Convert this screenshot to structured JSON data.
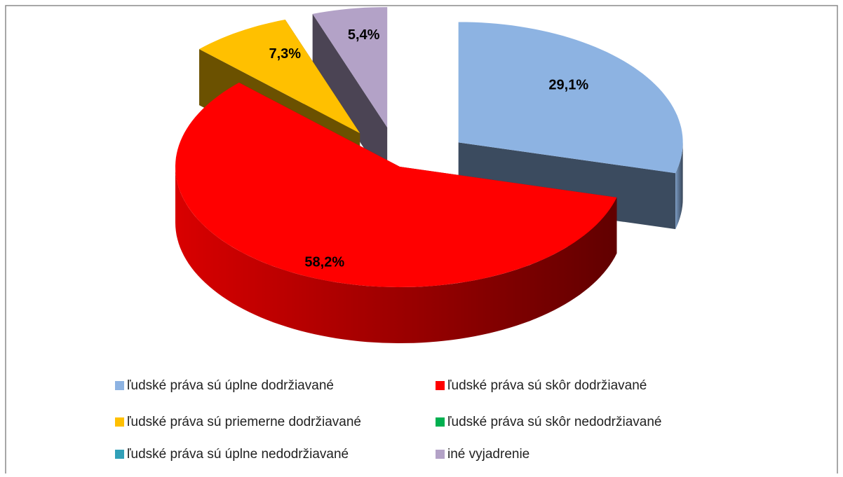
{
  "chart_data": {
    "type": "pie3d",
    "categories": [
      "ľudské práva sú úplne dodržiavané",
      "ľudské práva sú skôr dodržiavané",
      "ľudské práva sú priemerne dodržiavané",
      "ľudské práva sú skôr nedodržiavané",
      "ľudské práva sú úplne nedodržiavané",
      "iné vyjadrenie"
    ],
    "values": [
      29.1,
      58.2,
      7.3,
      0,
      0,
      5.4
    ],
    "value_labels": [
      "29,1%",
      "58,2%",
      "7,3%",
      null,
      null,
      "5,4%"
    ],
    "colors": [
      "#8db3e2",
      "#ff0000",
      "#ffc000",
      "#00b050",
      "#31a0b8",
      "#b3a2c7"
    ],
    "legend": "bottom"
  }
}
